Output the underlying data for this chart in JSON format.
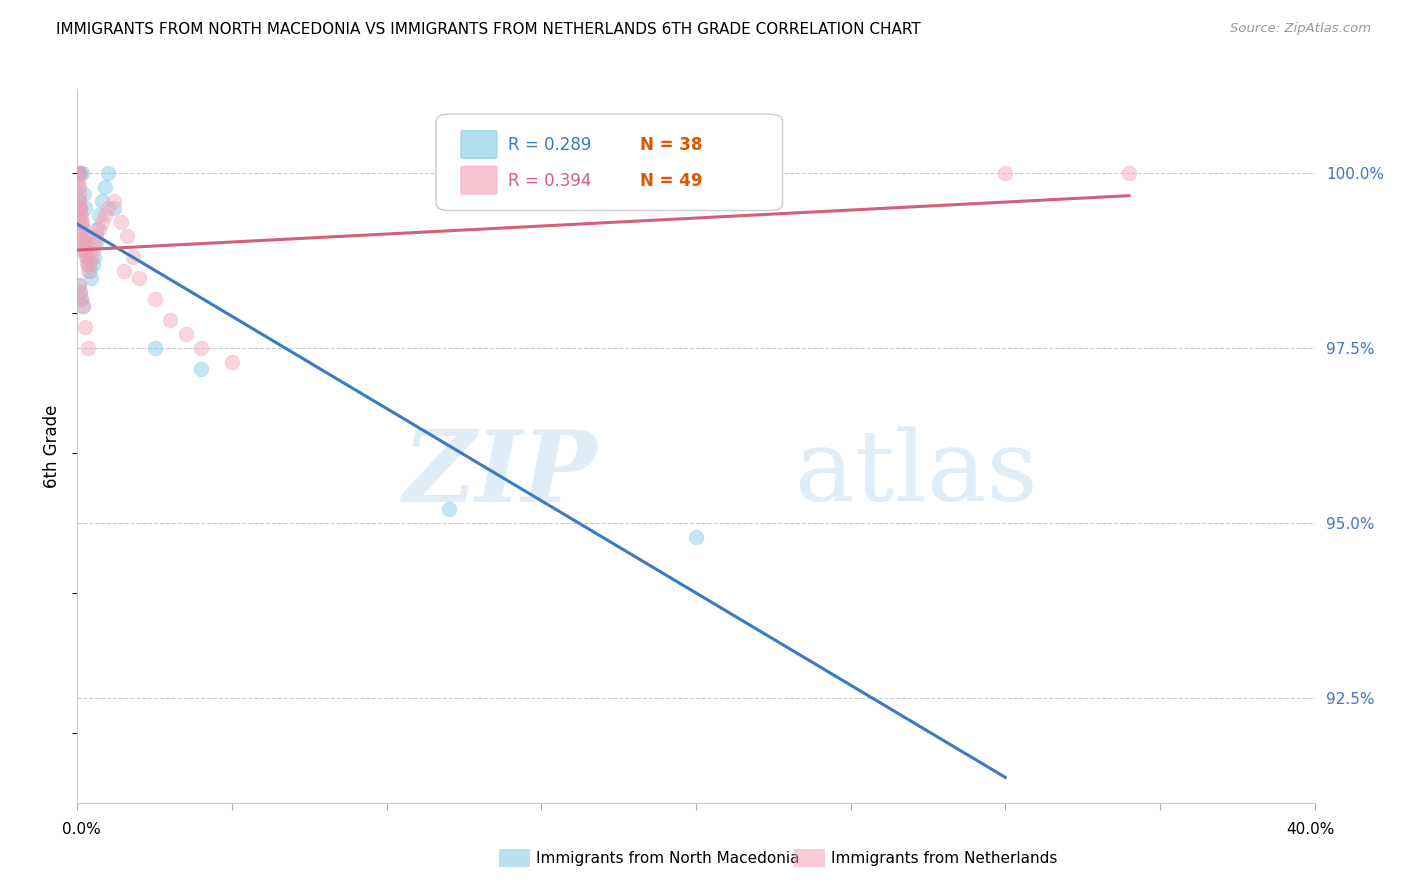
{
  "title": "IMMIGRANTS FROM NORTH MACEDONIA VS IMMIGRANTS FROM NETHERLANDS 6TH GRADE CORRELATION CHART",
  "source": "Source: ZipAtlas.com",
  "ylabel": "6th Grade",
  "right_yticks": [
    100.0,
    97.5,
    95.0,
    92.5
  ],
  "xlim": [
    0.0,
    40.0
  ],
  "ylim": [
    91.0,
    101.2
  ],
  "R_blue": 0.289,
  "N_blue": 38,
  "R_pink": 0.394,
  "N_pink": 49,
  "blue_color": "#7ec8e3",
  "pink_color": "#f4a0b5",
  "blue_line_color": "#3a7abf",
  "pink_line_color": "#d45f7a",
  "legend_label_blue": "Immigrants from North Macedonia",
  "legend_label_pink": "Immigrants from Netherlands",
  "blue_x": [
    0.02,
    0.03,
    0.05,
    0.07,
    0.08,
    0.1,
    0.12,
    0.15,
    0.18,
    0.2,
    0.22,
    0.25,
    0.28,
    0.3,
    0.35,
    0.4,
    0.45,
    0.5,
    0.55,
    0.6,
    0.65,
    0.7,
    0.8,
    0.9,
    1.0,
    1.2,
    0.05,
    0.08,
    0.12,
    0.18,
    2.5,
    4.0,
    12.0,
    20.0,
    0.03,
    0.06,
    0.09,
    0.14
  ],
  "blue_y": [
    100.0,
    99.8,
    100.0,
    99.6,
    99.5,
    99.4,
    99.3,
    99.2,
    99.0,
    98.9,
    99.7,
    99.5,
    99.1,
    98.8,
    98.7,
    98.6,
    98.5,
    98.7,
    98.8,
    99.0,
    99.2,
    99.4,
    99.6,
    99.8,
    100.0,
    99.5,
    98.4,
    98.3,
    98.2,
    98.1,
    97.5,
    97.2,
    95.2,
    94.8,
    100.0,
    100.0,
    100.0,
    100.0
  ],
  "pink_x": [
    0.02,
    0.03,
    0.04,
    0.05,
    0.06,
    0.07,
    0.08,
    0.1,
    0.12,
    0.15,
    0.18,
    0.2,
    0.22,
    0.25,
    0.28,
    0.3,
    0.35,
    0.4,
    0.45,
    0.5,
    0.55,
    0.6,
    0.7,
    0.8,
    0.9,
    1.0,
    1.2,
    1.4,
    1.6,
    1.8,
    2.0,
    2.5,
    3.0,
    3.5,
    4.0,
    5.0,
    0.05,
    0.08,
    0.12,
    0.18,
    0.03,
    0.06,
    0.09,
    0.14,
    0.25,
    0.35,
    1.5,
    30.0,
    34.0
  ],
  "pink_y": [
    100.0,
    99.9,
    100.0,
    99.8,
    99.7,
    99.6,
    99.5,
    99.5,
    99.4,
    99.3,
    99.2,
    99.1,
    99.0,
    98.9,
    98.8,
    98.7,
    98.6,
    98.7,
    98.8,
    98.9,
    99.0,
    99.1,
    99.2,
    99.3,
    99.4,
    99.5,
    99.6,
    99.3,
    99.1,
    98.8,
    98.5,
    98.2,
    97.9,
    97.7,
    97.5,
    97.3,
    98.4,
    98.3,
    98.2,
    98.1,
    99.5,
    99.3,
    99.1,
    98.9,
    97.8,
    97.5,
    98.6,
    100.0,
    100.0
  ]
}
